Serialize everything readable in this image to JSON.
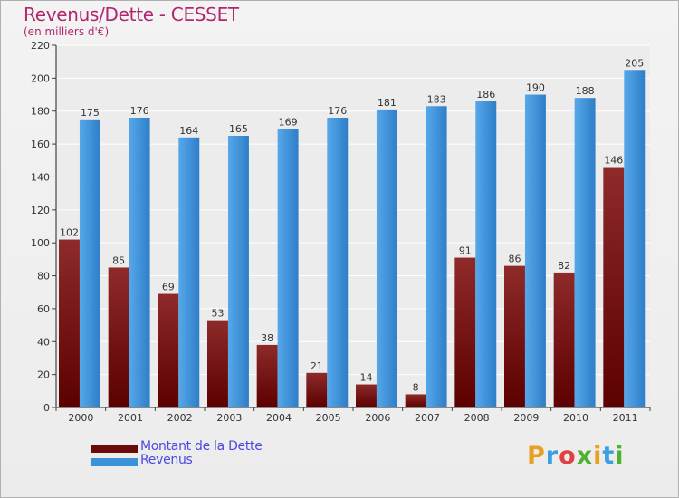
{
  "chart_data": {
    "type": "bar",
    "title": "Revenus/Dette - CESSET",
    "subtitle": "(en milliers d'€)",
    "categories": [
      "2000",
      "2001",
      "2002",
      "2003",
      "2004",
      "2005",
      "2006",
      "2007",
      "2008",
      "2009",
      "2010",
      "2011"
    ],
    "series": [
      {
        "name": "Montant de la Dette",
        "color": "#6b0a0a",
        "values": [
          102,
          85,
          69,
          53,
          38,
          21,
          14,
          8,
          91,
          86,
          82,
          146
        ]
      },
      {
        "name": "Revenus",
        "color": "#3a93da",
        "values": [
          175,
          176,
          164,
          165,
          169,
          176,
          181,
          183,
          186,
          190,
          188,
          205
        ]
      }
    ],
    "ylim": [
      0,
      220
    ],
    "yticks": [
      0,
      20,
      40,
      60,
      80,
      100,
      120,
      140,
      160,
      180,
      200,
      220
    ],
    "grid": true,
    "legend": "bottom-left",
    "data_labels": true
  },
  "brand": {
    "letters": [
      "P",
      "r",
      "o",
      "x",
      "i",
      "t",
      "i"
    ],
    "colors": [
      "#e8a020",
      "#3aa0e0",
      "#e04040",
      "#50b030",
      "#e8a020",
      "#3aa0e0",
      "#50b030"
    ]
  }
}
